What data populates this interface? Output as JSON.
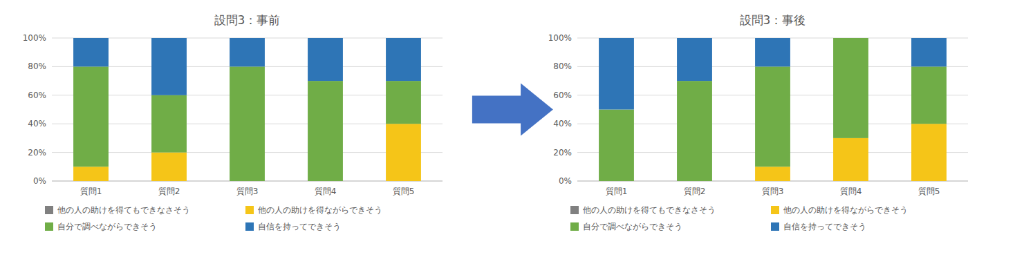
{
  "chart_data": [
    {
      "type": "bar",
      "stacked": true,
      "title": "設問3：事前",
      "categories": [
        "質問1",
        "質問2",
        "質問3",
        "質問4",
        "質問5"
      ],
      "series": [
        {
          "name": "他の人の助けを得てもできなさそう",
          "color": "#808080",
          "values": [
            0,
            0,
            0,
            0,
            0
          ]
        },
        {
          "name": "他の人の助けを得ながらできそう",
          "color": "#F5C518",
          "values": [
            10,
            20,
            0,
            0,
            40
          ]
        },
        {
          "name": "自分で調べながらできそう",
          "color": "#70AD47",
          "values": [
            70,
            40,
            80,
            70,
            30
          ]
        },
        {
          "name": "自信を持ってできそう",
          "color": "#2E75B6",
          "values": [
            20,
            40,
            20,
            30,
            30
          ]
        }
      ],
      "ylim": [
        0,
        100
      ],
      "yticks": [
        {
          "value": 0,
          "label": "0%"
        },
        {
          "value": 20,
          "label": "20%"
        },
        {
          "value": 40,
          "label": "40%"
        },
        {
          "value": 60,
          "label": "60%"
        },
        {
          "value": 80,
          "label": "80%"
        },
        {
          "value": 100,
          "label": "100%"
        }
      ],
      "grid": true,
      "legend": "bottom"
    },
    {
      "type": "bar",
      "stacked": true,
      "title": "設問3：事後",
      "categories": [
        "質問1",
        "質問2",
        "質問3",
        "質問4",
        "質問5"
      ],
      "series": [
        {
          "name": "他の人の助けを得てもできなさそう",
          "color": "#808080",
          "values": [
            0,
            0,
            0,
            0,
            0
          ]
        },
        {
          "name": "他の人の助けを得ながらできそう",
          "color": "#F5C518",
          "values": [
            0,
            0,
            10,
            30,
            40
          ]
        },
        {
          "name": "自分で調べながらできそう",
          "color": "#70AD47",
          "values": [
            50,
            70,
            70,
            70,
            40
          ]
        },
        {
          "name": "自信を持ってできそう",
          "color": "#2E75B6",
          "values": [
            50,
            30,
            20,
            0,
            20
          ]
        }
      ],
      "ylim": [
        0,
        100
      ],
      "yticks": [
        {
          "value": 0,
          "label": "0%"
        },
        {
          "value": 20,
          "label": "20%"
        },
        {
          "value": 40,
          "label": "40%"
        },
        {
          "value": 60,
          "label": "60%"
        },
        {
          "value": 80,
          "label": "80%"
        },
        {
          "value": 100,
          "label": "100%"
        }
      ],
      "grid": true,
      "legend": "bottom"
    }
  ]
}
